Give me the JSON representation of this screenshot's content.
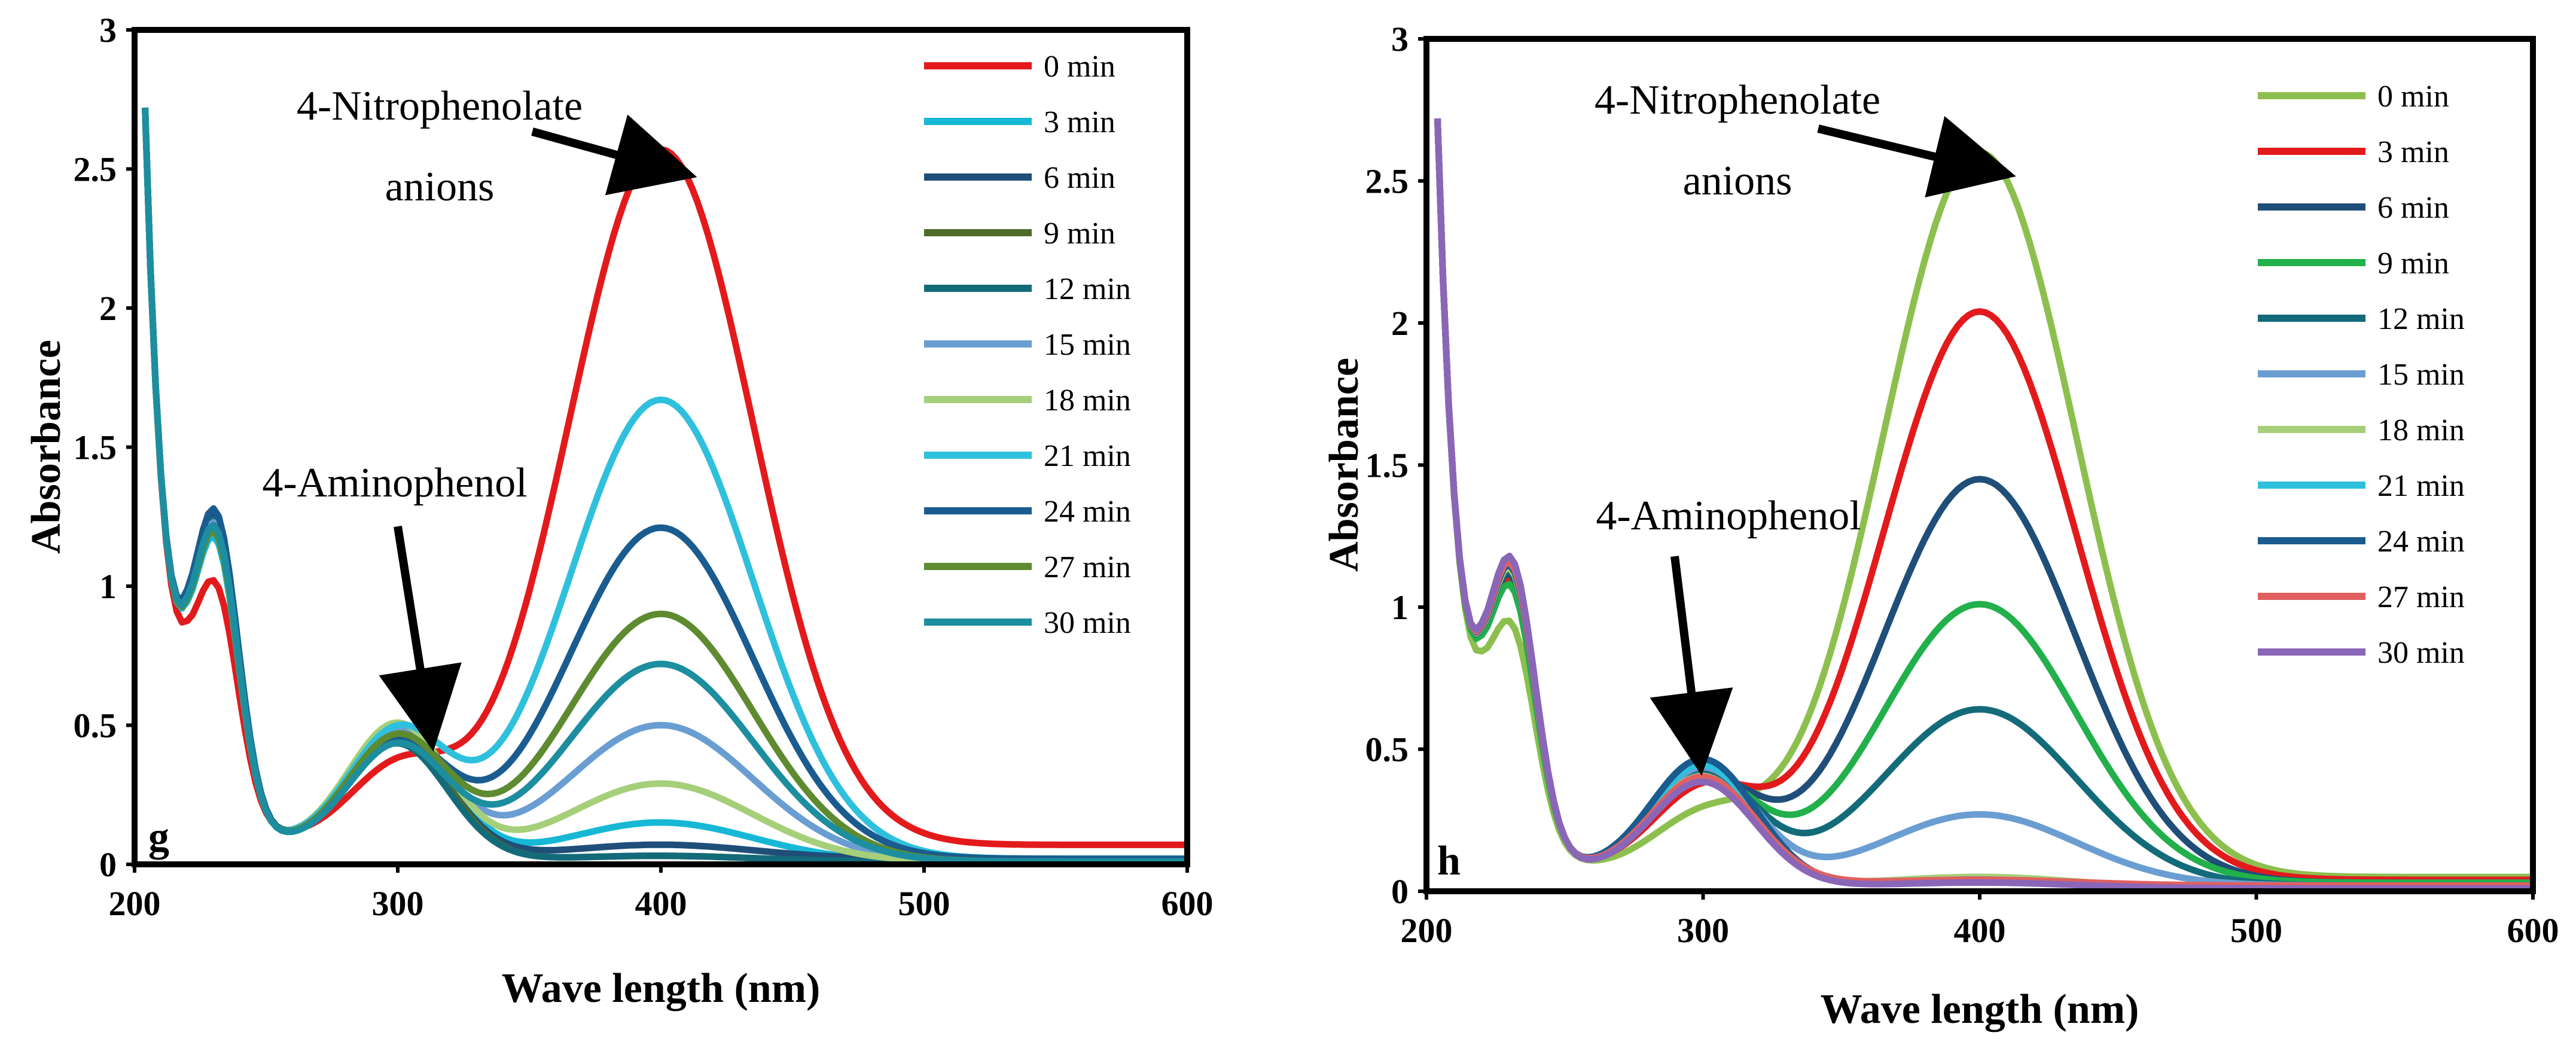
{
  "chart_data": [
    {
      "type": "line",
      "panel_label": "g",
      "xlabel": "Wave length (nm)",
      "ylabel": "Absorbance",
      "xlim": [
        200,
        600
      ],
      "ylim": [
        0,
        3
      ],
      "x_ticks": [
        "200",
        "300",
        "400",
        "500",
        "600"
      ],
      "y_ticks": [
        "0",
        "0.5",
        "1",
        "1.5",
        "2",
        "2.5",
        "3"
      ],
      "legend_position": "top-right",
      "annotations": [
        {
          "lines": [
            "4-Nitrophenolate",
            "anions"
          ],
          "points_to": {
            "x": 400,
            "y": 2.5
          }
        },
        {
          "lines": [
            "4-Aminophenol"
          ],
          "points_to": {
            "x": 310,
            "y": 0.5
          }
        }
      ],
      "series": [
        {
          "name": "0 min",
          "color": "#e31a1c",
          "peak400": 2.5,
          "p230": 1.02,
          "p300": 0.27,
          "tail": 0.07
        },
        {
          "name": "3 min",
          "color": "#17b8d6",
          "peak400": 0.14,
          "p230": 1.18,
          "p300": 0.47,
          "tail": 0.01
        },
        {
          "name": "6 min",
          "color": "#1f4e79",
          "peak400": 0.05,
          "p230": 1.25,
          "p300": 0.42,
          "tail": 0.02
        },
        {
          "name": "9 min",
          "color": "#4e6b2a",
          "peak400": 0.02,
          "p230": 1.22,
          "p300": 0.44,
          "tail": 0.01
        },
        {
          "name": "12 min",
          "color": "#136b7a",
          "peak400": 0.02,
          "p230": 1.24,
          "p300": 0.41,
          "tail": 0.01
        },
        {
          "name": "15 min",
          "color": "#6a9ed2",
          "peak400": 0.49,
          "p230": 1.23,
          "p300": 0.45,
          "tail": 0.01
        },
        {
          "name": "18 min",
          "color": "#a6cf7a",
          "peak400": 0.28,
          "p230": 1.2,
          "p300": 0.48,
          "tail": 0.01
        },
        {
          "name": "21 min",
          "color": "#2fc0dd",
          "peak400": 1.65,
          "p230": 1.2,
          "p300": 0.44,
          "tail": 0.02
        },
        {
          "name": "24 min",
          "color": "#1a5c8f",
          "peak400": 1.19,
          "p230": 1.28,
          "p300": 0.4,
          "tail": 0.02
        },
        {
          "name": "27 min",
          "color": "#5e8a30",
          "peak400": 0.89,
          "p230": 1.2,
          "p300": 0.43,
          "tail": 0.01
        },
        {
          "name": "30 min",
          "color": "#1c8ea0",
          "peak400": 0.71,
          "p230": 1.22,
          "p300": 0.4,
          "tail": 0.01
        }
      ]
    },
    {
      "type": "line",
      "panel_label": "h",
      "xlabel": "Wave length (nm)",
      "ylabel": "Absorbance",
      "xlim": [
        200,
        600
      ],
      "ylim": [
        0,
        3
      ],
      "x_ticks": [
        "200",
        "300",
        "400",
        "500",
        "600"
      ],
      "y_ticks": [
        "0",
        "0.5",
        "1",
        "1.5",
        "2",
        "2.5",
        "3"
      ],
      "legend_position": "top-right",
      "annotations": [
        {
          "lines": [
            "4-Nitrophenolate",
            "anions"
          ],
          "points_to": {
            "x": 400,
            "y": 2.55
          }
        },
        {
          "lines": [
            "4-Aminophenol"
          ],
          "points_to": {
            "x": 300,
            "y": 0.46
          }
        }
      ],
      "series": [
        {
          "name": "0 min",
          "color": "#8dbf4f",
          "peak400": 2.55,
          "p230": 0.95,
          "p300": 0.2,
          "tail": 0.05
        },
        {
          "name": "3 min",
          "color": "#e31a1c",
          "peak400": 2.0,
          "p230": 1.1,
          "p300": 0.3,
          "tail": 0.04
        },
        {
          "name": "6 min",
          "color": "#1f4e79",
          "peak400": 1.42,
          "p230": 1.12,
          "p300": 0.34,
          "tail": 0.03
        },
        {
          "name": "9 min",
          "color": "#22b04b",
          "peak400": 0.98,
          "p230": 1.08,
          "p300": 0.35,
          "tail": 0.03
        },
        {
          "name": "12 min",
          "color": "#136b7a",
          "peak400": 0.62,
          "p230": 1.13,
          "p300": 0.38,
          "tail": 0.02
        },
        {
          "name": "15 min",
          "color": "#6a9ed2",
          "peak400": 0.25,
          "p230": 1.15,
          "p300": 0.4,
          "tail": 0.02
        },
        {
          "name": "18 min",
          "color": "#a6cf7a",
          "peak400": 0.04,
          "p230": 1.14,
          "p300": 0.38,
          "tail": 0.01
        },
        {
          "name": "21 min",
          "color": "#2fc0dd",
          "peak400": 0.03,
          "p230": 1.16,
          "p300": 0.42,
          "tail": 0.01
        },
        {
          "name": "24 min",
          "color": "#1a5c8f",
          "peak400": 0.03,
          "p230": 1.15,
          "p300": 0.44,
          "tail": 0.01
        },
        {
          "name": "27 min",
          "color": "#e06060",
          "peak400": 0.02,
          "p230": 1.16,
          "p300": 0.37,
          "tail": 0.02
        },
        {
          "name": "30 min",
          "color": "#8a66b8",
          "peak400": 0.02,
          "p230": 1.18,
          "p300": 0.36,
          "tail": 0.01
        }
      ]
    }
  ]
}
